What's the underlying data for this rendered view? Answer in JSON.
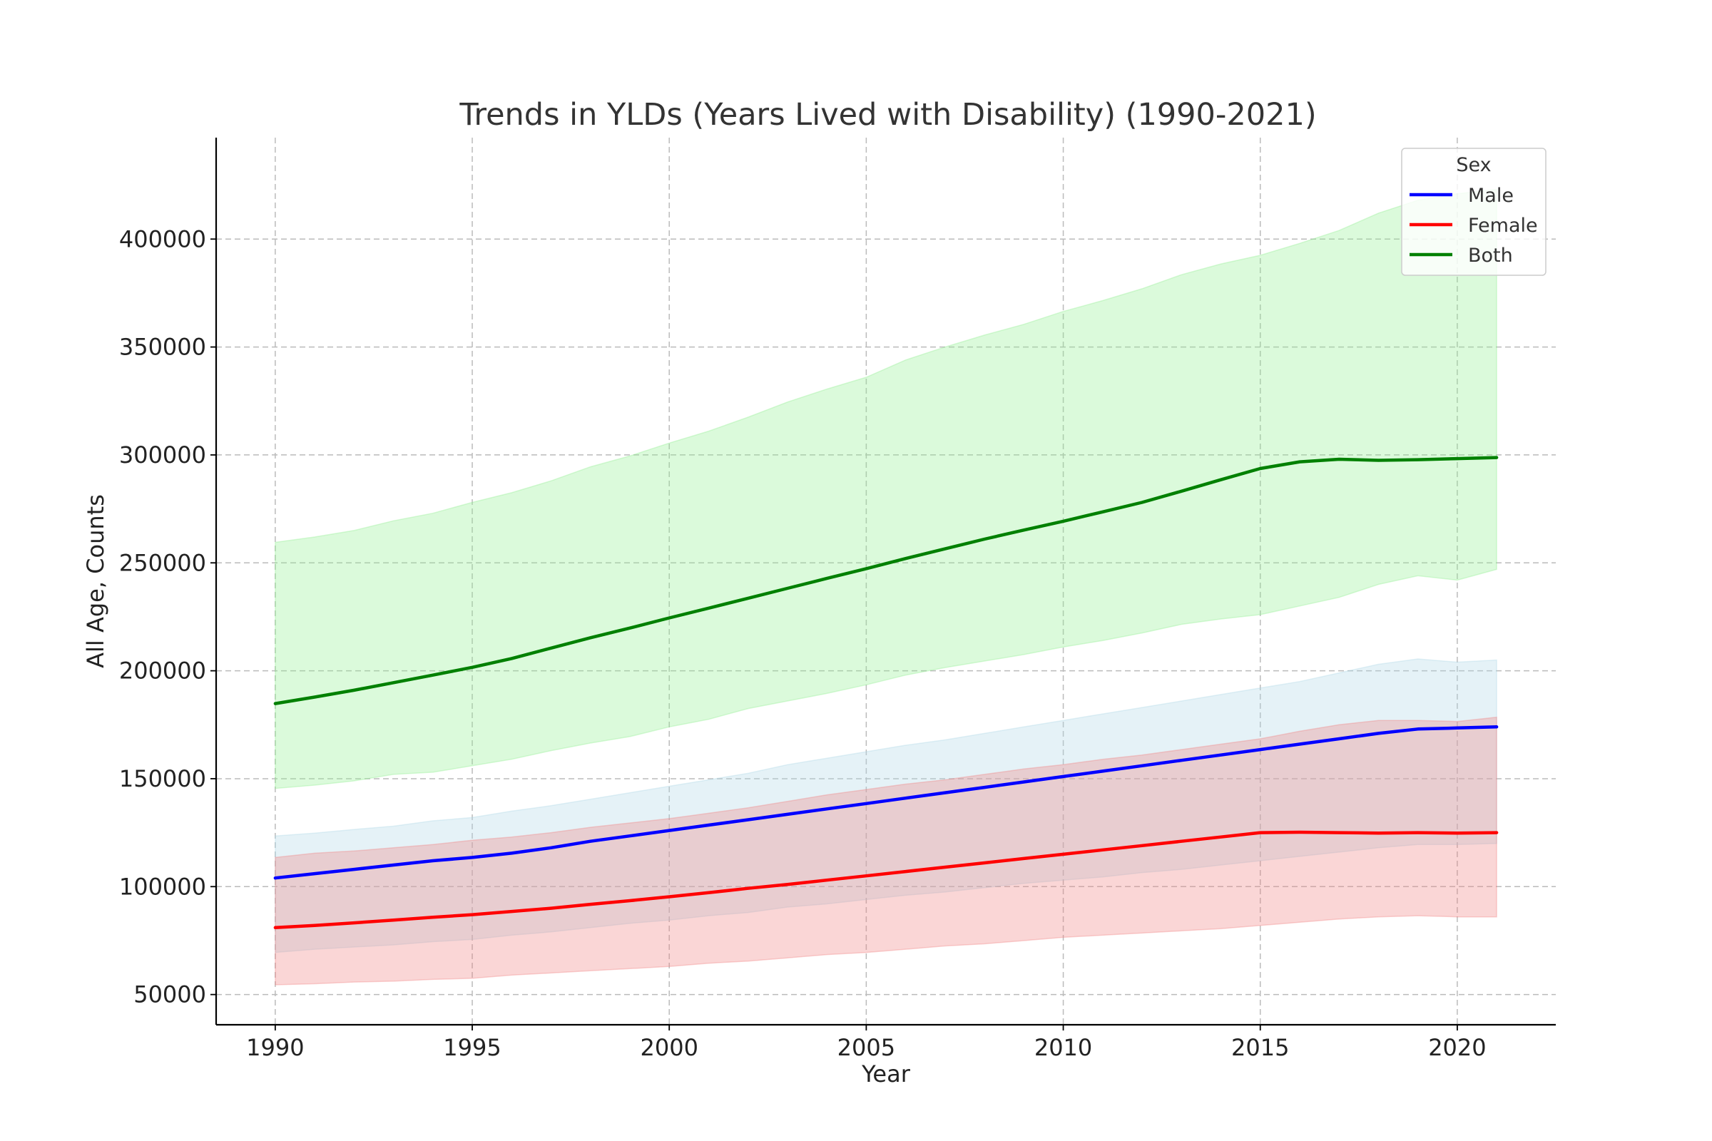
{
  "chart_data": {
    "type": "line",
    "title": "Trends in YLDs (Years Lived with Disability) (1990-2021)",
    "xlabel": "Year",
    "ylabel": "All Age, Counts",
    "xlim": [
      1988.5,
      2022.5
    ],
    "ylim": [
      36000,
      447000
    ],
    "xticks": [
      1990,
      1995,
      2000,
      2005,
      2010,
      2015,
      2020
    ],
    "yticks": [
      50000,
      100000,
      150000,
      200000,
      250000,
      300000,
      350000,
      400000
    ],
    "grid": true,
    "legend": {
      "title": "Sex",
      "position": "top-right"
    },
    "x": [
      1990,
      1991,
      1992,
      1993,
      1994,
      1995,
      1996,
      1997,
      1998,
      1999,
      2000,
      2001,
      2002,
      2003,
      2004,
      2005,
      2006,
      2007,
      2008,
      2009,
      2010,
      2011,
      2012,
      2013,
      2014,
      2015,
      2016,
      2017,
      2018,
      2019,
      2020,
      2021
    ],
    "series": [
      {
        "name": "Both",
        "color": "#008000",
        "band_color": "#90ee90",
        "values": [
          184800,
          187800,
          191000,
          194500,
          198000,
          201600,
          205700,
          210500,
          215300,
          219800,
          224500,
          229000,
          233600,
          238200,
          242800,
          247300,
          252000,
          256500,
          261000,
          265200,
          269300,
          273600,
          278000,
          283200,
          288500,
          293700,
          296800,
          298000,
          297500,
          297800,
          298300,
          298800
        ],
        "upper": [
          259500,
          262000,
          265000,
          269500,
          273000,
          278000,
          282500,
          288000,
          294500,
          299500,
          305500,
          311000,
          317500,
          324500,
          330500,
          336000,
          344000,
          350000,
          355500,
          360500,
          366500,
          371500,
          377000,
          383500,
          388500,
          392500,
          398000,
          404000,
          412000,
          418000,
          421000,
          423000
        ],
        "lower": [
          145500,
          147000,
          149000,
          152000,
          153000,
          156000,
          159000,
          163000,
          166500,
          169500,
          174000,
          177500,
          182500,
          186000,
          189500,
          193500,
          198000,
          201500,
          204500,
          207500,
          211000,
          214000,
          217500,
          221500,
          224000,
          226000,
          230000,
          234000,
          240000,
          244000,
          242000,
          247000
        ]
      },
      {
        "name": "Male",
        "color": "#0000ff",
        "band_color": "#add8e6",
        "values": [
          104000,
          106000,
          108000,
          110000,
          112000,
          113500,
          115500,
          118000,
          121000,
          123500,
          126000,
          128500,
          131000,
          133500,
          136000,
          138500,
          141000,
          143500,
          146000,
          148500,
          151000,
          153500,
          156000,
          158500,
          161000,
          163500,
          166000,
          168500,
          171000,
          173000,
          173500,
          174000
        ],
        "upper": [
          123500,
          124800,
          126500,
          128000,
          130500,
          132000,
          135000,
          137500,
          140500,
          143500,
          146500,
          149500,
          152500,
          156500,
          159500,
          162500,
          165500,
          168000,
          171000,
          174000,
          177000,
          180000,
          183000,
          186000,
          189000,
          192000,
          195000,
          199000,
          203000,
          205500,
          204000,
          205000
        ],
        "lower": [
          69500,
          71000,
          72000,
          73000,
          74500,
          75500,
          77500,
          79000,
          81000,
          83000,
          84500,
          86500,
          88000,
          90500,
          92000,
          94000,
          96000,
          97500,
          99500,
          101500,
          103000,
          104500,
          106500,
          108000,
          110000,
          112000,
          114000,
          116000,
          118000,
          119500,
          119500,
          120000
        ]
      },
      {
        "name": "Female",
        "color": "#ff0000",
        "band_color": "#f08080",
        "values": [
          81000,
          82000,
          83200,
          84500,
          85800,
          87000,
          88500,
          90000,
          91800,
          93500,
          95300,
          97200,
          99200,
          101000,
          103000,
          105000,
          107000,
          109000,
          111000,
          113000,
          115000,
          117000,
          119000,
          121000,
          123000,
          125000,
          125200,
          125000,
          124800,
          125000,
          124800,
          125000
        ],
        "upper": [
          113500,
          115500,
          116500,
          118000,
          119500,
          121500,
          123000,
          125000,
          127500,
          129500,
          131500,
          134000,
          136500,
          139500,
          142500,
          145000,
          147500,
          149500,
          152000,
          154500,
          156500,
          159000,
          161000,
          163500,
          166000,
          168500,
          172000,
          175000,
          177000,
          177000,
          176500,
          178500
        ],
        "lower": [
          54500,
          55000,
          55800,
          56200,
          57000,
          57500,
          59000,
          60000,
          61000,
          62000,
          63000,
          64500,
          65500,
          67000,
          68500,
          69500,
          71000,
          72500,
          73500,
          75000,
          76500,
          77500,
          78500,
          79500,
          80500,
          82000,
          83500,
          85000,
          86000,
          86500,
          86000,
          86000
        ]
      }
    ],
    "legend_order": [
      "Male",
      "Female",
      "Both"
    ]
  }
}
